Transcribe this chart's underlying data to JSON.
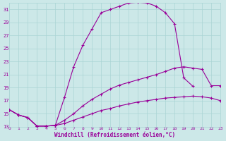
{
  "bg_color": "#cce8e8",
  "grid_color": "#aad4d4",
  "line_color": "#990099",
  "xlim": [
    0,
    23
  ],
  "ylim": [
    13,
    32
  ],
  "yticks": [
    13,
    15,
    17,
    19,
    21,
    23,
    25,
    27,
    29,
    31
  ],
  "xticks": [
    0,
    1,
    2,
    3,
    4,
    5,
    6,
    7,
    8,
    9,
    10,
    11,
    12,
    13,
    14,
    15,
    16,
    17,
    18,
    19,
    20,
    21,
    22,
    23
  ],
  "xlabel": "Windchill (Refroidissement éolien,°C)",
  "curve1_x": [
    0,
    1,
    2,
    3,
    4,
    5,
    6,
    7,
    8,
    9,
    10,
    11,
    12,
    13,
    14,
    15,
    16,
    17,
    18,
    19,
    20
  ],
  "curve1_y": [
    15.6,
    14.8,
    14.4,
    13.1,
    13.1,
    13.2,
    17.5,
    22.2,
    25.5,
    28.0,
    30.5,
    31.0,
    31.5,
    32.0,
    32.1,
    32.0,
    31.5,
    30.5,
    28.8,
    20.5,
    19.2
  ],
  "curve2_x": [
    0,
    1,
    2,
    3,
    4,
    5,
    6,
    7,
    8,
    9,
    10,
    11,
    12,
    13,
    14,
    15,
    16,
    17,
    18,
    19,
    20,
    21,
    22,
    23
  ],
  "curve2_y": [
    15.6,
    14.8,
    14.4,
    13.1,
    13.1,
    13.2,
    14.0,
    15.0,
    16.2,
    17.2,
    18.0,
    18.8,
    19.4,
    19.8,
    20.2,
    20.6,
    21.0,
    21.5,
    22.0,
    22.2,
    22.0,
    21.8,
    19.3,
    19.3
  ],
  "curve3_x": [
    0,
    1,
    2,
    3,
    4,
    5,
    6,
    7,
    8,
    9,
    10,
    11,
    12,
    13,
    14,
    15,
    16,
    17,
    18,
    19,
    20,
    21,
    22,
    23
  ],
  "curve3_y": [
    15.6,
    14.8,
    14.4,
    13.1,
    13.1,
    13.2,
    13.5,
    14.0,
    14.5,
    15.0,
    15.5,
    15.8,
    16.2,
    16.5,
    16.8,
    17.0,
    17.2,
    17.4,
    17.5,
    17.6,
    17.7,
    17.6,
    17.4,
    17.0
  ]
}
